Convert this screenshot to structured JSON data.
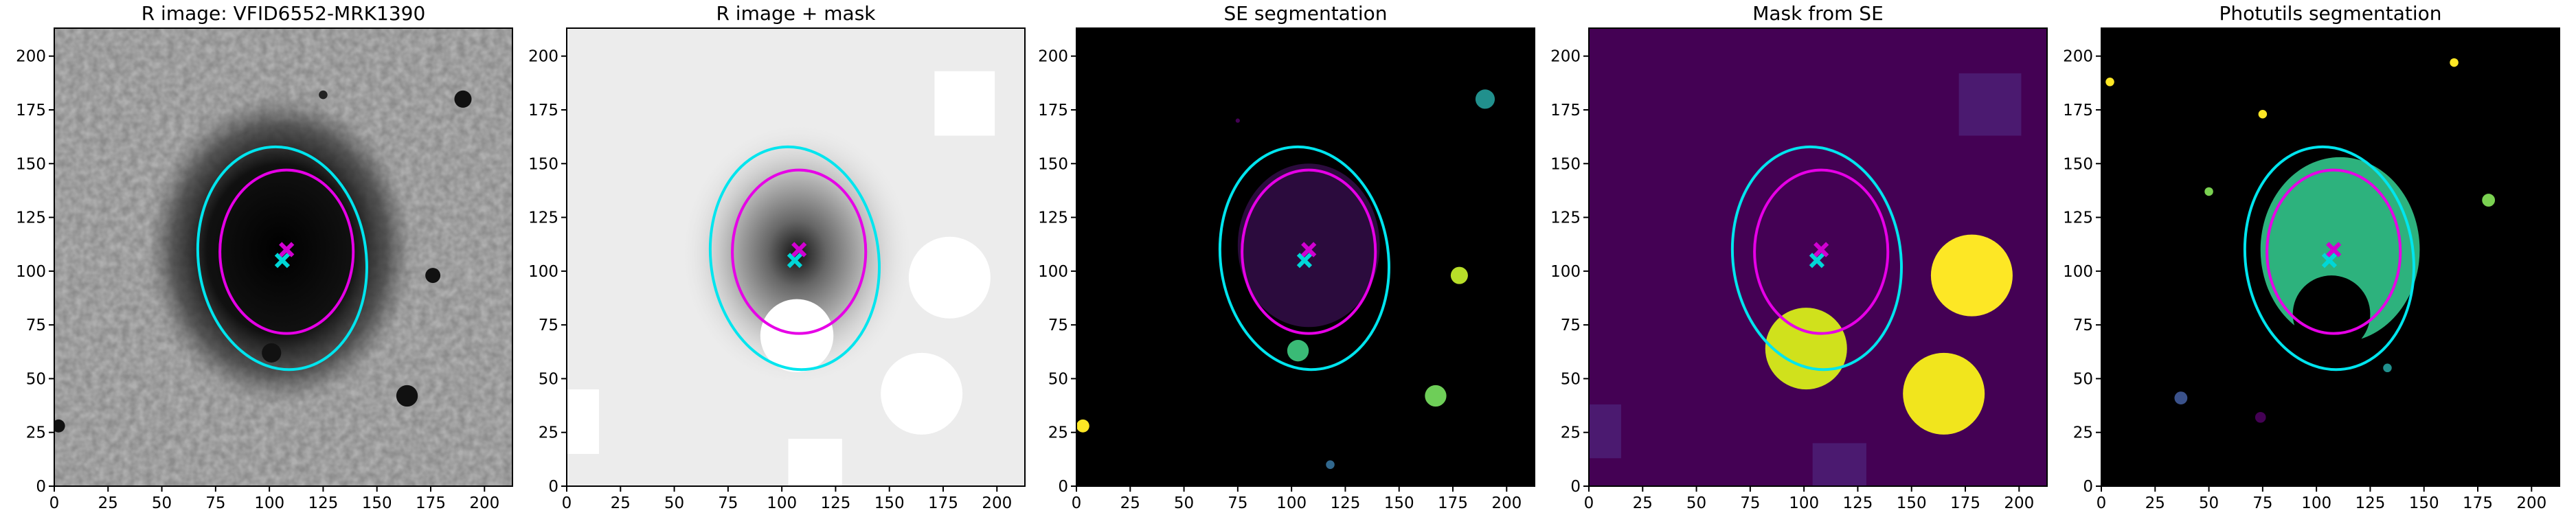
{
  "chart_data": [
    {
      "type": "image",
      "title": "R image: VFID6552-MRK1390",
      "xlim": [
        0,
        213
      ],
      "ylim": [
        0,
        213
      ],
      "xticks": [
        0,
        25,
        50,
        75,
        100,
        125,
        150,
        175,
        200
      ],
      "yticks": [
        0,
        25,
        50,
        75,
        100,
        125,
        150,
        175,
        200
      ]
    },
    {
      "type": "image",
      "title": "R image + mask",
      "xlim": [
        0,
        213
      ],
      "ylim": [
        0,
        213
      ],
      "xticks": [
        0,
        25,
        50,
        75,
        100,
        125,
        150,
        175,
        200
      ],
      "yticks": [
        0,
        25,
        50,
        75,
        100,
        125,
        150,
        175,
        200
      ]
    },
    {
      "type": "image",
      "title": "SE segmentation",
      "xlim": [
        0,
        213
      ],
      "ylim": [
        0,
        213
      ],
      "xticks": [
        0,
        25,
        50,
        75,
        100,
        125,
        150,
        175,
        200
      ],
      "yticks": [
        0,
        25,
        50,
        75,
        100,
        125,
        150,
        175,
        200
      ]
    },
    {
      "type": "image",
      "title": "Mask from SE",
      "xlim": [
        0,
        213
      ],
      "ylim": [
        0,
        213
      ],
      "xticks": [
        0,
        25,
        50,
        75,
        100,
        125,
        150,
        175,
        200
      ],
      "yticks": [
        0,
        25,
        50,
        75,
        100,
        125,
        150,
        175,
        200
      ]
    },
    {
      "type": "image",
      "title": "Photutils segmentation",
      "xlim": [
        0,
        213
      ],
      "ylim": [
        0,
        213
      ],
      "xticks": [
        0,
        25,
        50,
        75,
        100,
        125,
        150,
        175,
        200
      ],
      "yticks": [
        0,
        25,
        50,
        75,
        100,
        125,
        150,
        175,
        200
      ]
    }
  ]
}
